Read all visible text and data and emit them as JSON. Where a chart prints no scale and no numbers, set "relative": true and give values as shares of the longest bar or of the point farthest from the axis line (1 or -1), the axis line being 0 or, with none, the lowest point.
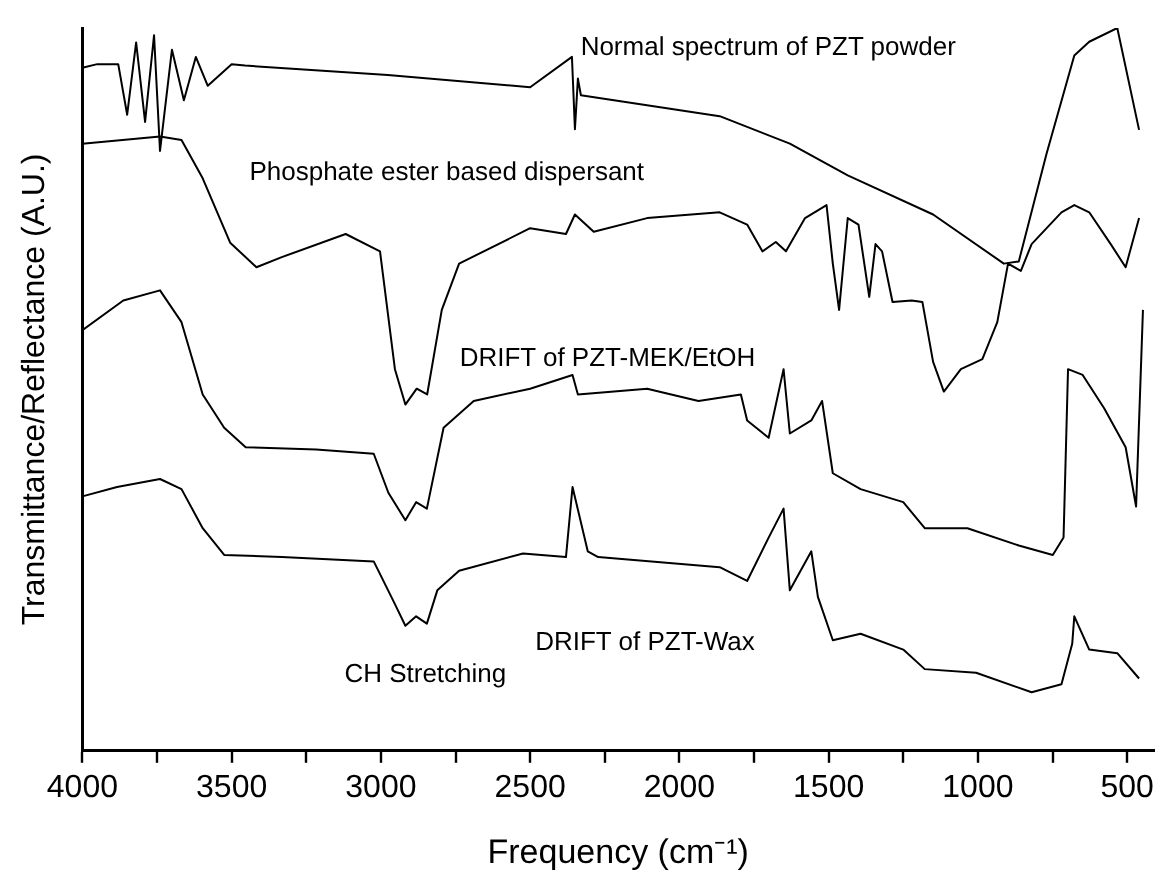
{
  "chart_data": {
    "type": "line",
    "relative": true,
    "xlabel": "Frequency (cm⁻¹)",
    "ylabel": "Transmittance/Reflectance (A.U.)",
    "xlim": [
      4000,
      410
    ],
    "xticks": [
      4000,
      {
        "value": 3750,
        "label": null
      },
      3500,
      {
        "value": 3250,
        "label": null
      },
      3000,
      {
        "value": 2750,
        "label": null
      },
      2500,
      {
        "value": 2250,
        "label": null
      },
      2000,
      {
        "value": 1750,
        "label": null
      },
      1500,
      {
        "value": 1250,
        "label": null
      },
      1000,
      {
        "value": 750,
        "label": null
      },
      500
    ],
    "tick_labels": "x",
    "grid": false,
    "legend": false,
    "marker": "none",
    "line_style": "solid",
    "series": [
      {
        "name": "Normal spectrum of PZT powder",
        "color": "#000000",
        "x": [
          4000,
          3950,
          3880,
          3850,
          3820,
          3790,
          3760,
          3740,
          3700,
          3660,
          3620,
          3580,
          3500,
          3455,
          2977,
          2500,
          2360,
          2350,
          2340,
          2330,
          1865,
          1630,
          1436,
          1150,
          913,
          863,
          770,
          677,
          627,
          533,
          460
        ],
        "values": [
          0.945,
          0.95,
          0.95,
          0.88,
          0.98,
          0.87,
          0.99,
          0.83,
          0.97,
          0.9,
          0.96,
          0.92,
          0.95,
          0.948,
          0.935,
          0.918,
          0.96,
          0.86,
          0.93,
          0.907,
          0.878,
          0.84,
          0.796,
          0.742,
          0.674,
          0.677,
          0.826,
          0.962,
          0.981,
          1.0,
          0.859
        ]
      },
      {
        "name": "Phosphate ester based dispersant",
        "color": "#000000",
        "x": [
          4000,
          3740,
          3668,
          3597,
          3505,
          3417,
          3332,
          3118,
          3003,
          2953,
          2918,
          2880,
          2845,
          2796,
          2738,
          2500,
          2380,
          2350,
          2287,
          2108,
          1865,
          1773,
          1722,
          1677,
          1643,
          1579,
          1507,
          1486,
          1465,
          1436,
          1400,
          1364,
          1343,
          1321,
          1286,
          1222,
          1186,
          1150,
          1114,
          1057,
          985,
          935,
          899,
          856,
          820,
          720,
          677,
          627,
          555,
          505,
          460
        ],
        "values": [
          0.84,
          0.85,
          0.845,
          0.792,
          0.703,
          0.669,
          0.683,
          0.715,
          0.691,
          0.528,
          0.479,
          0.501,
          0.493,
          0.61,
          0.674,
          0.723,
          0.715,
          0.742,
          0.718,
          0.737,
          0.745,
          0.728,
          0.691,
          0.704,
          0.691,
          0.737,
          0.755,
          0.674,
          0.61,
          0.737,
          0.728,
          0.628,
          0.701,
          0.691,
          0.621,
          0.623,
          0.621,
          0.538,
          0.497,
          0.528,
          0.542,
          0.593,
          0.674,
          0.664,
          0.701,
          0.745,
          0.755,
          0.745,
          0.701,
          0.669,
          0.737
        ]
      },
      {
        "name": "DRIFT of PZT-MEK/EtOH",
        "color": "#000000",
        "x": [
          4000,
          3863,
          3740,
          3668,
          3597,
          3525,
          3453,
          3217,
          3024,
          2975,
          2918,
          2882,
          2846,
          2790,
          2689,
          2500,
          2358,
          2340,
          2108,
          1936,
          1794,
          1773,
          1701,
          1651,
          1630,
          1558,
          1522,
          1486,
          1393,
          1250,
          1178,
          1035,
          863,
          749,
          713,
          698,
          649,
          577,
          505,
          470,
          447
        ],
        "values": [
          0.582,
          0.623,
          0.637,
          0.593,
          0.493,
          0.447,
          0.42,
          0.417,
          0.411,
          0.357,
          0.319,
          0.344,
          0.335,
          0.447,
          0.484,
          0.501,
          0.52,
          0.493,
          0.501,
          0.484,
          0.493,
          0.457,
          0.433,
          0.528,
          0.439,
          0.457,
          0.484,
          0.384,
          0.362,
          0.344,
          0.308,
          0.308,
          0.284,
          0.271,
          0.295,
          0.528,
          0.52,
          0.474,
          0.42,
          0.338,
          0.61
        ]
      },
      {
        "name": "DRIFT of PZT-Wax",
        "color": "#000000",
        "x": [
          4000,
          3884,
          3740,
          3668,
          3597,
          3525,
          3332,
          3024,
          2953,
          2918,
          2882,
          2846,
          2811,
          2738,
          2524,
          2380,
          2358,
          2307,
          2272,
          1865,
          1773,
          1701,
          1651,
          1630,
          1558,
          1536,
          1486,
          1393,
          1250,
          1178,
          1006,
          820,
          720,
          684,
          677,
          627,
          533,
          460
        ],
        "values": [
          0.352,
          0.365,
          0.376,
          0.362,
          0.308,
          0.271,
          0.268,
          0.262,
          0.203,
          0.173,
          0.186,
          0.176,
          0.222,
          0.249,
          0.273,
          0.268,
          0.365,
          0.276,
          0.268,
          0.254,
          0.235,
          0.295,
          0.335,
          0.222,
          0.276,
          0.213,
          0.153,
          0.162,
          0.14,
          0.113,
          0.108,
          0.081,
          0.092,
          0.148,
          0.186,
          0.14,
          0.135,
          0.1
        ]
      }
    ],
    "annotations": [
      "CH Stretching"
    ]
  }
}
